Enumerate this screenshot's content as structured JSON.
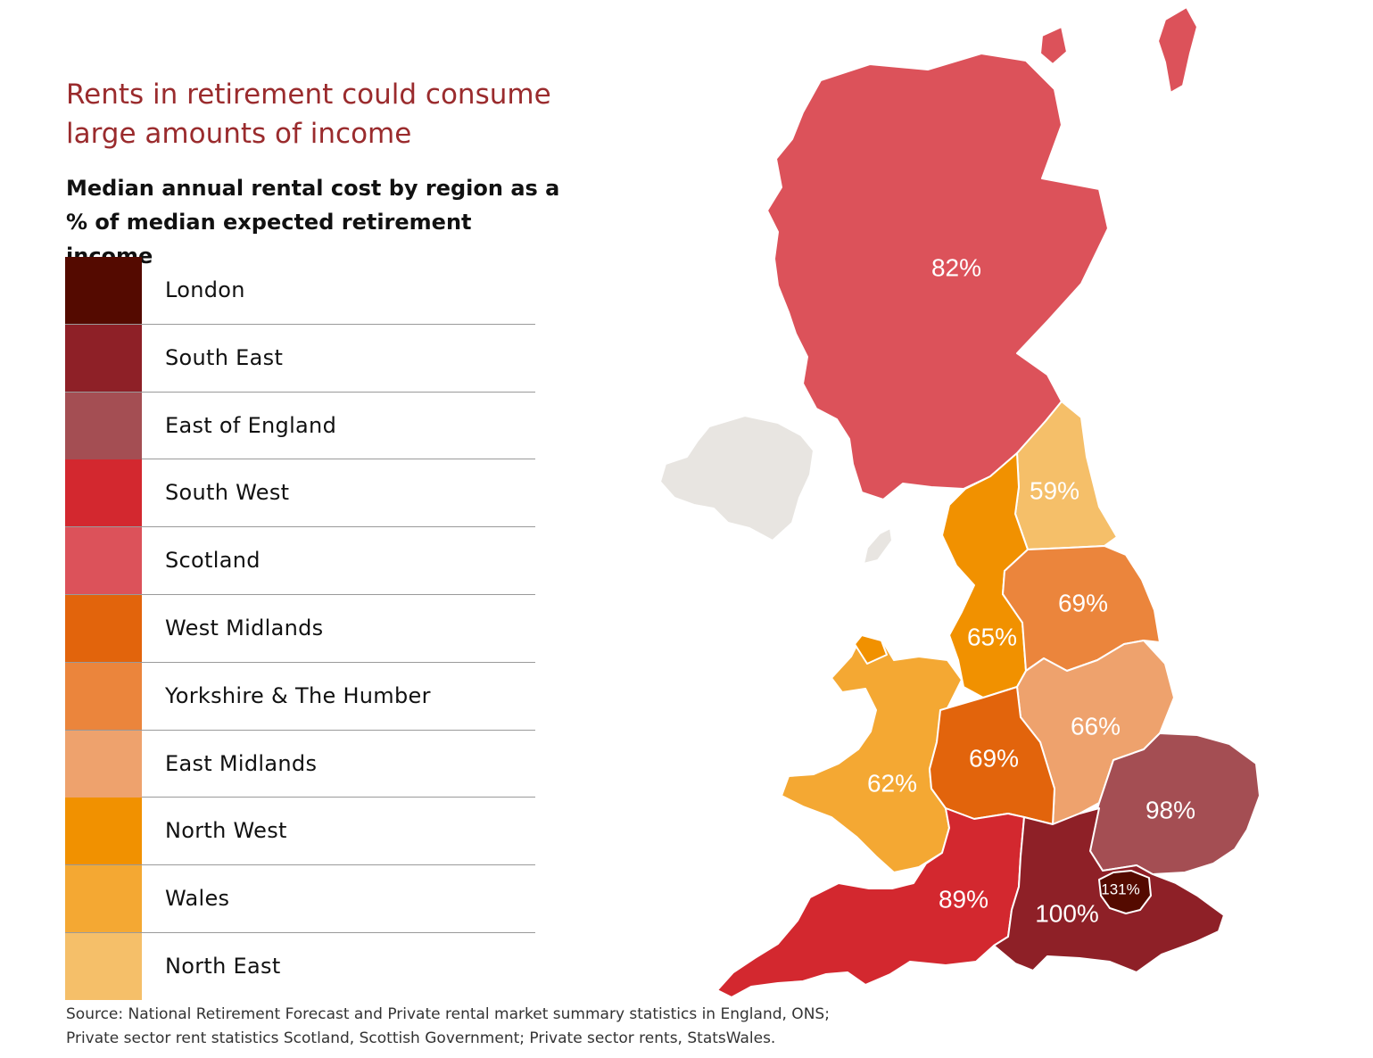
{
  "title": "Rents in retirement could consume large amounts of income",
  "subtitle": "Median annual rental cost by region as a % of median expected retirement income",
  "legend": [
    {
      "label": "London",
      "color": "#540a00"
    },
    {
      "label": "South East",
      "color": "#8e2027"
    },
    {
      "label": "East of England",
      "color": "#a44e53"
    },
    {
      "label": "South West",
      "color": "#d3282f"
    },
    {
      "label": "Scotland",
      "color": "#dc525a"
    },
    {
      "label": "West Midlands",
      "color": "#e2640c"
    },
    {
      "label": "Yorkshire & The Humber",
      "color": "#eb853c"
    },
    {
      "label": "East Midlands",
      "color": "#eea26d"
    },
    {
      "label": "North West",
      "color": "#f19100"
    },
    {
      "label": "Wales",
      "color": "#f4a833"
    },
    {
      "label": "North East",
      "color": "#f5bf69"
    }
  ],
  "map_values": {
    "scotland": "82%",
    "north_east": "59%",
    "yorkshire": "69%",
    "north_west": "65%",
    "east_midlands": "66%",
    "west_midlands": "69%",
    "wales": "62%",
    "east_of_england": "98%",
    "south_west": "89%",
    "south_east": "100%",
    "london": "131%"
  },
  "other_colors": {
    "northern_ireland": "#e8e5e1",
    "border": "#ffffff"
  },
  "source": {
    "line1": "Source: National Retirement Forecast and Private rental market summary statistics in England, ONS;",
    "line2": "Private sector rent statistics Scotland, Scottish Government; Private sector rents, StatsWales."
  }
}
